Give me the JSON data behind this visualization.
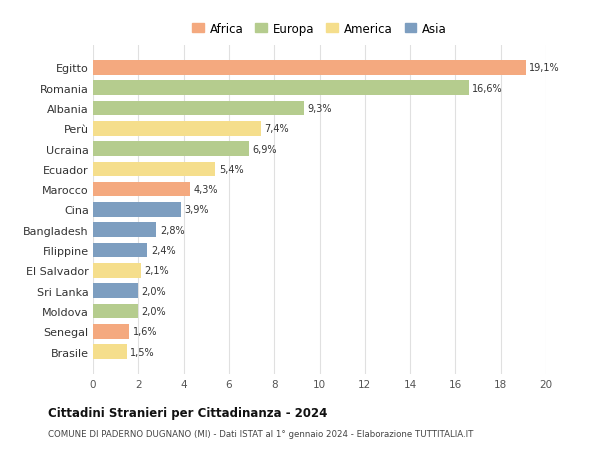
{
  "countries": [
    "Egitto",
    "Romania",
    "Albania",
    "Perù",
    "Ucraina",
    "Ecuador",
    "Marocco",
    "Cina",
    "Bangladesh",
    "Filippine",
    "El Salvador",
    "Sri Lanka",
    "Moldova",
    "Senegal",
    "Brasile"
  ],
  "values": [
    19.1,
    16.6,
    9.3,
    7.4,
    6.9,
    5.4,
    4.3,
    3.9,
    2.8,
    2.4,
    2.1,
    2.0,
    2.0,
    1.6,
    1.5
  ],
  "labels": [
    "19,1%",
    "16,6%",
    "9,3%",
    "7,4%",
    "6,9%",
    "5,4%",
    "4,3%",
    "3,9%",
    "2,8%",
    "2,4%",
    "2,1%",
    "2,0%",
    "2,0%",
    "1,6%",
    "1,5%"
  ],
  "continents": [
    "Africa",
    "Europa",
    "Europa",
    "America",
    "Europa",
    "America",
    "Africa",
    "Asia",
    "Asia",
    "Asia",
    "America",
    "Asia",
    "Europa",
    "Africa",
    "America"
  ],
  "colors": {
    "Africa": "#F4A97F",
    "Europa": "#B5CC8E",
    "America": "#F5DE8C",
    "Asia": "#7D9EC0"
  },
  "legend_order": [
    "Africa",
    "Europa",
    "America",
    "Asia"
  ],
  "title": "Cittadini Stranieri per Cittadinanza - 2024",
  "subtitle": "COMUNE DI PADERNO DUGNANO (MI) - Dati ISTAT al 1° gennaio 2024 - Elaborazione TUTTITALIA.IT",
  "xlim": [
    0,
    20
  ],
  "xticks": [
    0,
    2,
    4,
    6,
    8,
    10,
    12,
    14,
    16,
    18,
    20
  ],
  "bg_color": "#ffffff",
  "grid_color": "#e0e0e0"
}
